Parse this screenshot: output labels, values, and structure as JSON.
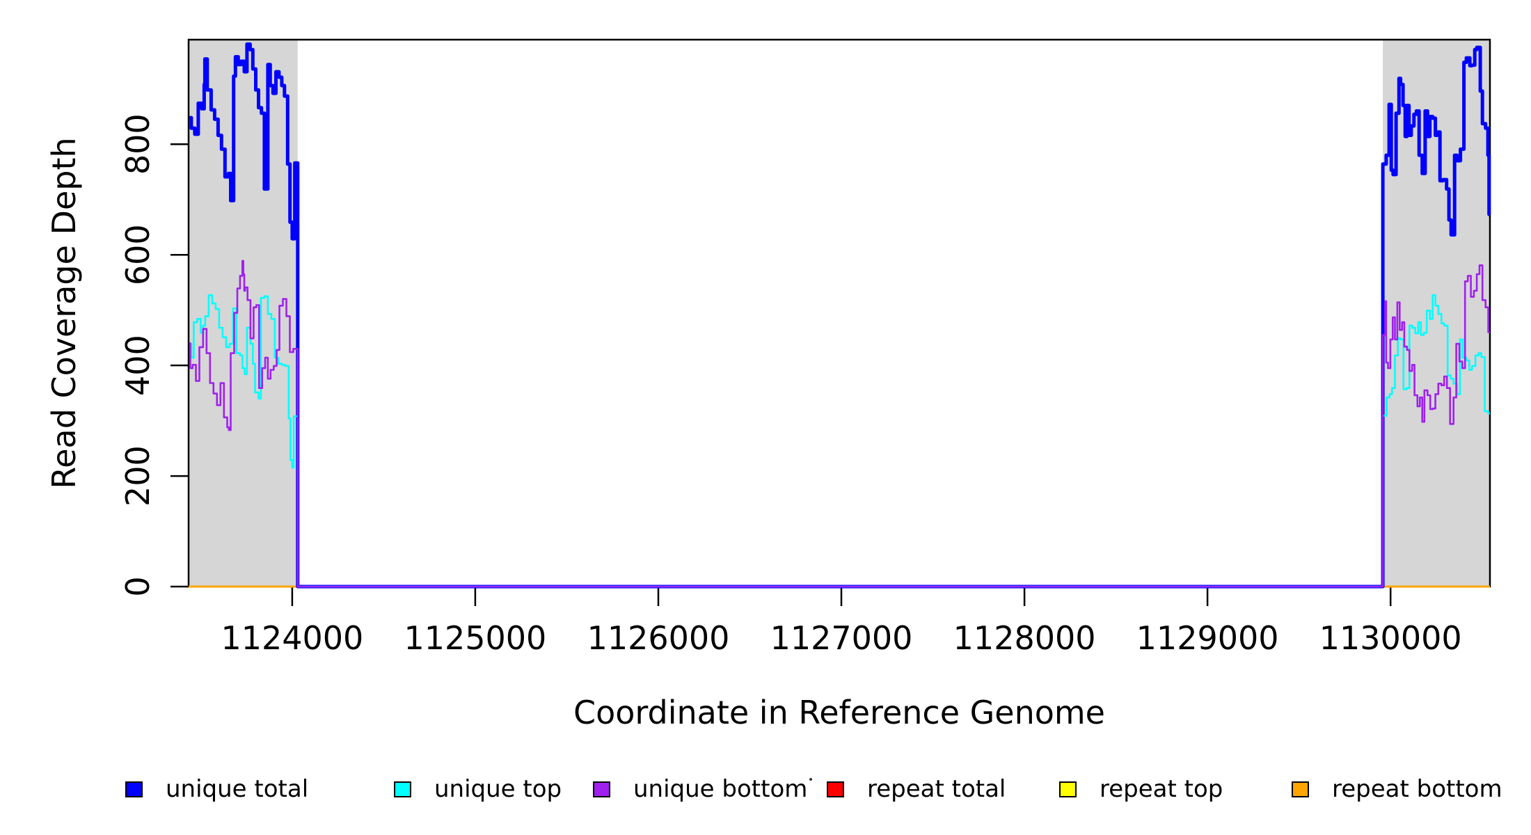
{
  "figure": {
    "xlabel": "Coordinate in Reference Genome",
    "ylabel": "Read Coverage Depth"
  },
  "legend": {
    "items": [
      {
        "label": "unique total",
        "color": "#0000FF"
      },
      {
        "label": "unique top",
        "color": "#00FFFF"
      },
      {
        "label": "unique bottom",
        "color": "#A020F0"
      },
      {
        "label": "repeat total",
        "color": "#FF0000"
      },
      {
        "label": "repeat top",
        "color": "#FFFF00"
      },
      {
        "label": "repeat bottom",
        "color": "#FFA500"
      }
    ]
  },
  "chart_data": {
    "type": "line",
    "subtype": "step",
    "title": "",
    "xlabel": "Coordinate in Reference Genome",
    "ylabel": "Read Coverage Depth",
    "xlim": [
      1123434,
      1130543
    ],
    "ylim": [
      0,
      989
    ],
    "x_ticks": [
      1124000,
      1125000,
      1126000,
      1127000,
      1128000,
      1129000,
      1130000
    ],
    "y_ticks": [
      0,
      200,
      400,
      600,
      800
    ],
    "grid": false,
    "legend_position": "bottom-horizontal",
    "shaded_regions": [
      {
        "start": 1123434,
        "end": 1124030,
        "color": "#D6D6D6"
      },
      {
        "start": 1129958,
        "end": 1130543,
        "color": "#D6D6D6"
      }
    ],
    "region_note": "unique-coverage traces are non-zero only inside shaded regions; all traces are 0 in the middle span; repeat traces are 0 everywhere",
    "series": [
      {
        "name": "repeat total",
        "color": "#FF0000",
        "width": 3,
        "flat_value": 0
      },
      {
        "name": "repeat top",
        "color": "#FFFF00",
        "width": 3,
        "flat_value": 0
      },
      {
        "name": "repeat bottom",
        "color": "#FFA500",
        "width": 3,
        "flat_value": 0
      },
      {
        "name": "unique total",
        "color": "#0000FF",
        "width": 5,
        "left": [
          [
            1123438,
            848
          ],
          [
            1123449,
            829
          ],
          [
            1123468,
            818
          ],
          [
            1123487,
            874
          ],
          [
            1123506,
            864
          ],
          [
            1123519,
            908
          ],
          [
            1123523,
            954
          ],
          [
            1123536,
            898
          ],
          [
            1123557,
            862
          ],
          [
            1123576,
            845
          ],
          [
            1123595,
            816
          ],
          [
            1123614,
            791
          ],
          [
            1123633,
            741
          ],
          [
            1123652,
            747
          ],
          [
            1123664,
            698
          ],
          [
            1123680,
            923
          ],
          [
            1123690,
            958
          ],
          [
            1123705,
            944
          ],
          [
            1123721,
            950
          ],
          [
            1123738,
            931
          ],
          [
            1123753,
            981
          ],
          [
            1123770,
            971
          ],
          [
            1123785,
            936
          ],
          [
            1123801,
            898
          ],
          [
            1123816,
            866
          ],
          [
            1123832,
            856
          ],
          [
            1123848,
            719
          ],
          [
            1123867,
            944
          ],
          [
            1123880,
            906
          ],
          [
            1123895,
            892
          ],
          [
            1123911,
            931
          ],
          [
            1123928,
            921
          ],
          [
            1123943,
            906
          ],
          [
            1123958,
            887
          ],
          [
            1123975,
            764
          ],
          [
            1123988,
            659
          ],
          [
            1124000,
            629
          ],
          [
            1124014,
            766
          ]
        ],
        "right": [
          [
            1129959,
            764
          ],
          [
            1129976,
            780
          ],
          [
            1129992,
            872
          ],
          [
            1130004,
            753
          ],
          [
            1130014,
            745
          ],
          [
            1130030,
            856
          ],
          [
            1130046,
            919
          ],
          [
            1130055,
            908
          ],
          [
            1130068,
            870
          ],
          [
            1130080,
            814
          ],
          [
            1130090,
            870
          ],
          [
            1130101,
            816
          ],
          [
            1130113,
            833
          ],
          [
            1130128,
            854
          ],
          [
            1130141,
            860
          ],
          [
            1130156,
            780
          ],
          [
            1130173,
            747
          ],
          [
            1130189,
            860
          ],
          [
            1130202,
            814
          ],
          [
            1130215,
            850
          ],
          [
            1130230,
            847
          ],
          [
            1130245,
            816
          ],
          [
            1130255,
            822
          ],
          [
            1130270,
            734
          ],
          [
            1130287,
            736
          ],
          [
            1130306,
            719
          ],
          [
            1130319,
            663
          ],
          [
            1130331,
            636
          ],
          [
            1130350,
            780
          ],
          [
            1130363,
            770
          ],
          [
            1130382,
            791
          ],
          [
            1130401,
            948
          ],
          [
            1130414,
            956
          ],
          [
            1130433,
            942
          ],
          [
            1130445,
            943
          ],
          [
            1130460,
            971
          ],
          [
            1130471,
            975
          ],
          [
            1130490,
            896
          ],
          [
            1130502,
            837
          ],
          [
            1130519,
            829
          ],
          [
            1130532,
            780
          ],
          [
            1130538,
            673
          ]
        ]
      },
      {
        "name": "unique top",
        "color": "#00FFFF",
        "width": 2.6,
        "left": [
          [
            1123438,
            439
          ],
          [
            1123449,
            414
          ],
          [
            1123462,
            478
          ],
          [
            1123481,
            484
          ],
          [
            1123500,
            459
          ],
          [
            1123513,
            472
          ],
          [
            1123525,
            489
          ],
          [
            1123544,
            527
          ],
          [
            1123563,
            512
          ],
          [
            1123582,
            502
          ],
          [
            1123601,
            468
          ],
          [
            1123620,
            451
          ],
          [
            1123639,
            433
          ],
          [
            1123658,
            439
          ],
          [
            1123677,
            503
          ],
          [
            1123696,
            422
          ],
          [
            1123715,
            418
          ],
          [
            1123728,
            395
          ],
          [
            1123740,
            384
          ],
          [
            1123753,
            468
          ],
          [
            1123772,
            439
          ],
          [
            1123785,
            403
          ],
          [
            1123797,
            351
          ],
          [
            1123816,
            340
          ],
          [
            1123829,
            522
          ],
          [
            1123848,
            525
          ],
          [
            1123867,
            493
          ],
          [
            1123886,
            484
          ],
          [
            1123905,
            414
          ],
          [
            1123924,
            403
          ],
          [
            1123943,
            401
          ],
          [
            1123962,
            399
          ],
          [
            1123981,
            304
          ],
          [
            1123990,
            229
          ],
          [
            1124000,
            215
          ],
          [
            1124008,
            308
          ]
        ],
        "right": [
          [
            1129966,
            309
          ],
          [
            1129979,
            342
          ],
          [
            1129995,
            348
          ],
          [
            1130008,
            359
          ],
          [
            1130024,
            418
          ],
          [
            1130040,
            449
          ],
          [
            1130055,
            447
          ],
          [
            1130071,
            357
          ],
          [
            1130088,
            359
          ],
          [
            1130103,
            472
          ],
          [
            1130118,
            468
          ],
          [
            1130135,
            458
          ],
          [
            1130151,
            478
          ],
          [
            1130166,
            455
          ],
          [
            1130182,
            459
          ],
          [
            1130198,
            499
          ],
          [
            1130215,
            484
          ],
          [
            1130230,
            527
          ],
          [
            1130245,
            508
          ],
          [
            1130261,
            493
          ],
          [
            1130278,
            476
          ],
          [
            1130293,
            472
          ],
          [
            1130312,
            382
          ],
          [
            1130329,
            376
          ],
          [
            1130344,
            367
          ],
          [
            1130363,
            348
          ],
          [
            1130379,
            447
          ],
          [
            1130394,
            414
          ],
          [
            1130414,
            409
          ],
          [
            1130430,
            392
          ],
          [
            1130445,
            399
          ],
          [
            1130464,
            418
          ],
          [
            1130481,
            422
          ],
          [
            1130496,
            415
          ],
          [
            1130515,
            317
          ],
          [
            1130534,
            313
          ]
        ]
      },
      {
        "name": "unique bottom",
        "color": "#A020F0",
        "width": 2.6,
        "left": [
          [
            1123438,
            440
          ],
          [
            1123443,
            395
          ],
          [
            1123456,
            401
          ],
          [
            1123474,
            372
          ],
          [
            1123493,
            433
          ],
          [
            1123513,
            466
          ],
          [
            1123532,
            422
          ],
          [
            1123551,
            368
          ],
          [
            1123570,
            349
          ],
          [
            1123589,
            328
          ],
          [
            1123608,
            368
          ],
          [
            1123627,
            306
          ],
          [
            1123645,
            288
          ],
          [
            1123654,
            283
          ],
          [
            1123664,
            422
          ],
          [
            1123683,
            495
          ],
          [
            1123700,
            539
          ],
          [
            1123715,
            562
          ],
          [
            1123728,
            589
          ],
          [
            1123733,
            565
          ],
          [
            1123738,
            535
          ],
          [
            1123743,
            541
          ],
          [
            1123756,
            518
          ],
          [
            1123772,
            449
          ],
          [
            1123789,
            505
          ],
          [
            1123804,
            509
          ],
          [
            1123819,
            359
          ],
          [
            1123836,
            395
          ],
          [
            1123852,
            414
          ],
          [
            1123867,
            376
          ],
          [
            1123882,
            392
          ],
          [
            1123899,
            399
          ],
          [
            1123915,
            428
          ],
          [
            1123930,
            508
          ],
          [
            1123949,
            520
          ],
          [
            1123968,
            489
          ],
          [
            1123987,
            424
          ],
          [
            1124006,
            430
          ]
        ],
        "right": [
          [
            1129966,
            455
          ],
          [
            1129971,
            516
          ],
          [
            1129976,
            405
          ],
          [
            1129986,
            395
          ],
          [
            1129999,
            447
          ],
          [
            1130012,
            487
          ],
          [
            1130024,
            447
          ],
          [
            1130037,
            514
          ],
          [
            1130050,
            464
          ],
          [
            1130063,
            478
          ],
          [
            1130075,
            434
          ],
          [
            1130090,
            428
          ],
          [
            1130103,
            390
          ],
          [
            1130118,
            401
          ],
          [
            1130131,
            346
          ],
          [
            1130147,
            326
          ],
          [
            1130160,
            342
          ],
          [
            1130173,
            298
          ],
          [
            1130185,
            355
          ],
          [
            1130202,
            346
          ],
          [
            1130217,
            321
          ],
          [
            1130232,
            322
          ],
          [
            1130245,
            348
          ],
          [
            1130261,
            367
          ],
          [
            1130278,
            364
          ],
          [
            1130293,
            380
          ],
          [
            1130308,
            359
          ],
          [
            1130325,
            294
          ],
          [
            1130344,
            342
          ],
          [
            1130359,
            439
          ],
          [
            1130376,
            407
          ],
          [
            1130392,
            395
          ],
          [
            1130407,
            552
          ],
          [
            1130422,
            562
          ],
          [
            1130439,
            524
          ],
          [
            1130455,
            535
          ],
          [
            1130471,
            565
          ],
          [
            1130486,
            581
          ],
          [
            1130502,
            518
          ],
          [
            1130519,
            505
          ],
          [
            1130534,
            460
          ]
        ]
      }
    ]
  }
}
